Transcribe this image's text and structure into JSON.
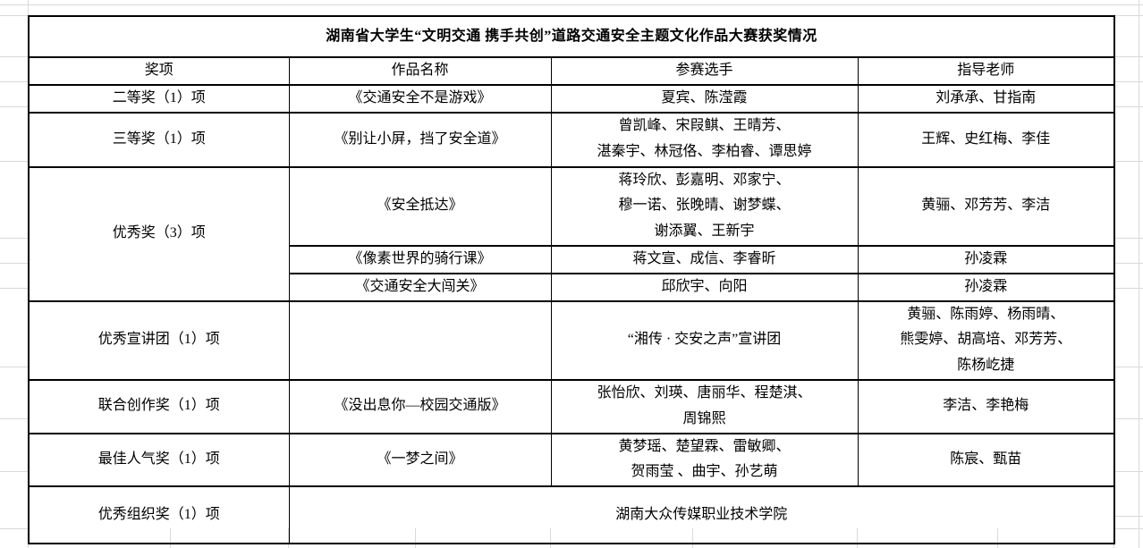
{
  "table": {
    "title": "湖南省大学生“文明交通 携手共创”道路交通安全主题文化作品大赛获奖情况",
    "headers": {
      "award": "奖项",
      "work": "作品名称",
      "contestants": "参赛选手",
      "teachers": "指导老师"
    },
    "rows": [
      {
        "award": "二等奖（1）项",
        "work": "《交通安全不是游戏》",
        "contestants": "夏宾、陈滢霞",
        "teachers": "刘承承、甘指南"
      },
      {
        "award": "三等奖（1）项",
        "work": "《别让小屏，挡了安全道》",
        "contestants": "曾凯峰、宋叚鲯、王晴芳、\n湛秦宇、林冠佫、李柏睿、谭思婷",
        "teachers": "王辉、史红梅、李佳"
      },
      {
        "award": "优秀奖（3）项",
        "work": "《安全抵达》",
        "contestants": "蒋玲欣、彭嘉明、邓家宁、\n穆一诺、张晚晴、谢梦蝶、\n谢添翼、王新宇",
        "teachers": "黄骊、邓芳芳、李洁"
      },
      {
        "work": "《像素世界的骑行课》",
        "contestants": "蒋文宣、成信、李睿昕",
        "teachers": "孙凌霖"
      },
      {
        "work": "《交通安全大闯关》",
        "contestants": "邱欣宇、向阳",
        "teachers": "孙凌霖"
      },
      {
        "award": "优秀宣讲团（1）项",
        "work": "",
        "contestants": "“湘传 · 交安之声”宣讲团",
        "teachers": "黄骊、陈雨婷、杨雨晴、\n熊雯婷、胡高培、邓芳芳、\n陈杨屹捷"
      },
      {
        "award": "联合创作奖（1）项",
        "work": "《没出息你—校园交通版》",
        "contestants": "张怡欣、刘瑛、唐丽华、程楚淇、\n周锦熙",
        "teachers": "李洁、李艳梅"
      },
      {
        "award": "最佳人气奖（1）项",
        "work": "《一梦之间》",
        "contestants": "黄梦瑶、楚望霖、雷敏卿、\n贺雨莹 、曲宇、孙艺萌",
        "teachers": "陈宸、甄苗"
      },
      {
        "award": "优秀组织奖（1）项",
        "merged": "湖南大众传媒职业技术学院"
      }
    ]
  },
  "colors": {
    "border": "#000000",
    "gridline": "#d9d9d9",
    "background": "#ffffff"
  }
}
